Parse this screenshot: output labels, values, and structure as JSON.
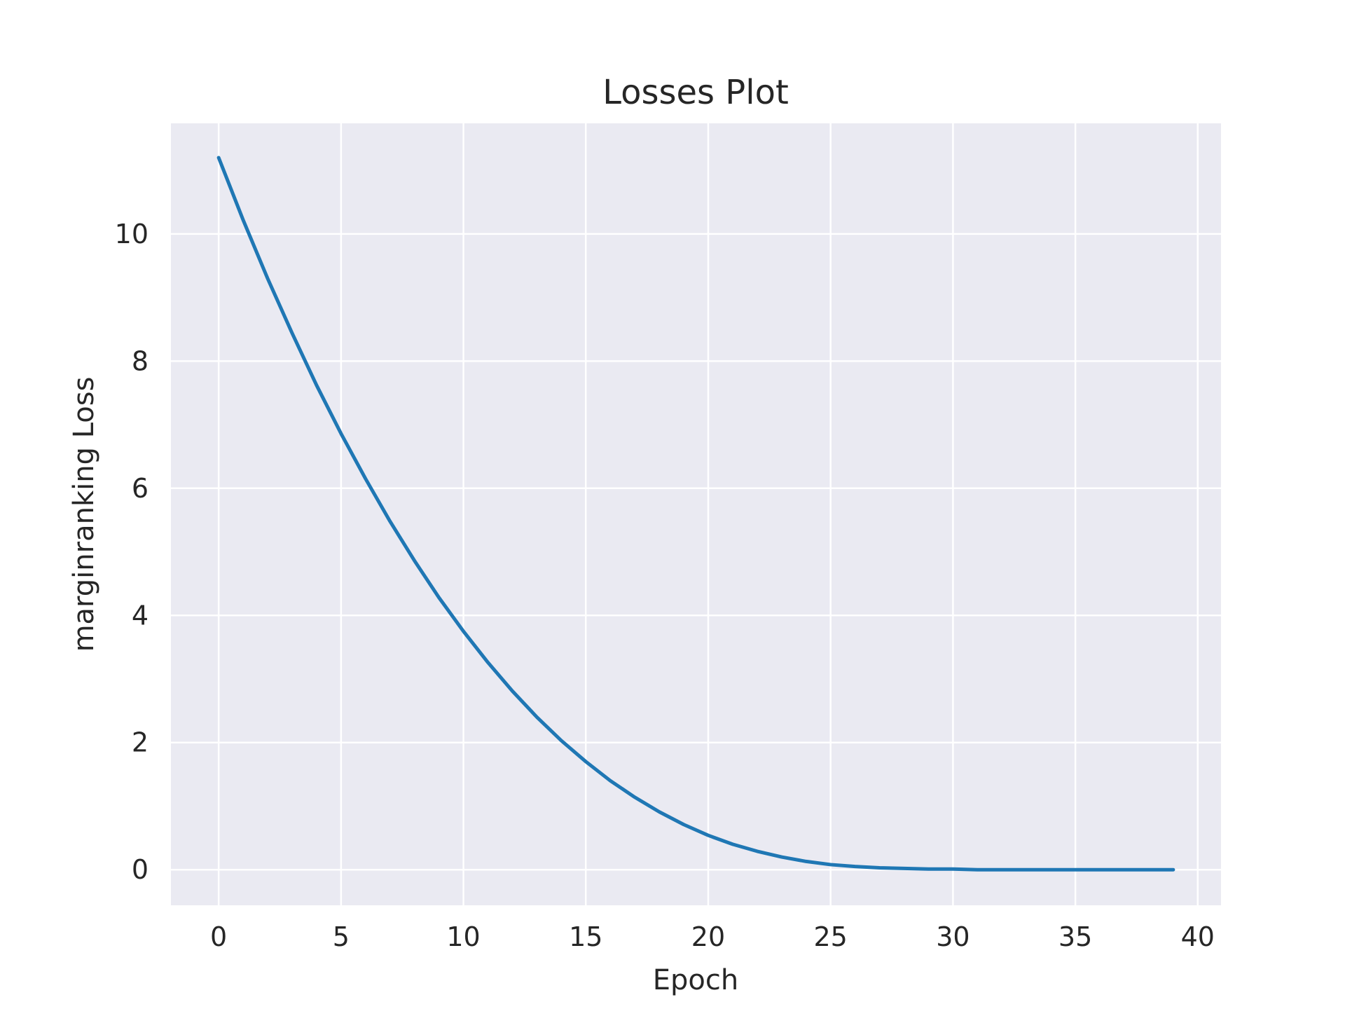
{
  "chart_data": {
    "type": "line",
    "title": "Losses Plot",
    "xlabel": "Epoch",
    "ylabel": "marginranking Loss",
    "xlim": [
      -1.95,
      40.95
    ],
    "ylim": [
      -0.56,
      11.74
    ],
    "x_ticks": [
      0,
      5,
      10,
      15,
      20,
      25,
      30,
      35,
      40
    ],
    "y_ticks": [
      0,
      2,
      4,
      6,
      8,
      10
    ],
    "grid": true,
    "legend": "none",
    "colors": {
      "background": "#eaeaf2",
      "grid": "#ffffff",
      "line": "#1f77b4",
      "text": "#262626"
    },
    "series": [
      {
        "x": [
          0,
          1,
          2,
          3,
          4,
          5,
          6,
          7,
          8,
          9,
          10,
          11,
          12,
          13,
          14,
          15,
          16,
          17,
          18,
          19,
          20,
          21,
          22,
          23,
          24,
          25,
          26,
          27,
          28,
          29,
          30,
          31,
          32,
          33,
          34,
          35,
          36,
          37,
          38,
          39
        ],
        "values": [
          11.2,
          10.22,
          9.3,
          8.44,
          7.62,
          6.86,
          6.15,
          5.48,
          4.86,
          4.28,
          3.75,
          3.26,
          2.81,
          2.4,
          2.03,
          1.7,
          1.4,
          1.14,
          0.91,
          0.71,
          0.54,
          0.4,
          0.29,
          0.2,
          0.13,
          0.08,
          0.05,
          0.03,
          0.02,
          0.01,
          0.01,
          0.0,
          0.0,
          0.0,
          0.0,
          0.0,
          0.0,
          0.0,
          0.0,
          0.0
        ]
      }
    ]
  }
}
